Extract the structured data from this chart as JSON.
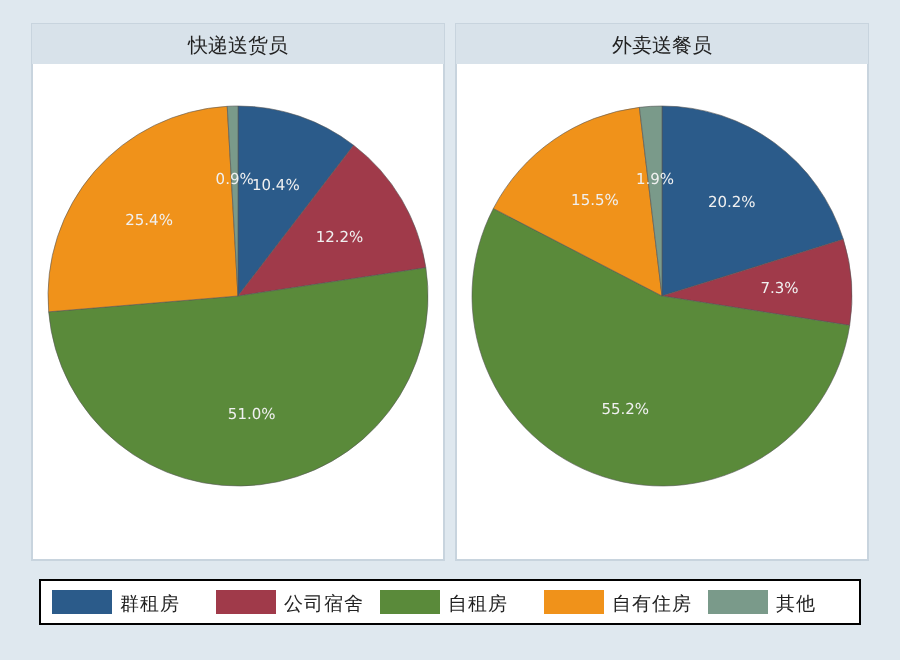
{
  "chart_data": [
    {
      "type": "pie",
      "title": "快递送货员",
      "categories": [
        "群租房",
        "公司宿舍",
        "自租房",
        "自有住房",
        "其他"
      ],
      "values": [
        10.4,
        12.2,
        51.0,
        25.4,
        0.9
      ],
      "value_labels": [
        "10.4%",
        "12.2%",
        "51.0%",
        "25.4%",
        "0.9%"
      ],
      "colors": [
        "#2b5b8a",
        "#a03a4a",
        "#5a8a3a",
        "#f0921a",
        "#7a9a8a"
      ],
      "legend": "bottom"
    },
    {
      "type": "pie",
      "title": "外卖送餐员",
      "categories": [
        null,
        null,
        null,
        null,
        null
      ],
      "values": [
        20.2,
        7.3,
        55.2,
        15.5,
        1.9
      ],
      "value_labels": [
        "20.2%",
        "7.3%",
        "55.2%",
        "15.5%",
        "1.9%"
      ],
      "colors": [
        "#2b5b8a",
        "#a03a4a",
        "#5a8a3a",
        "#f0921a",
        "#7a9a8a"
      ]
    }
  ]
}
